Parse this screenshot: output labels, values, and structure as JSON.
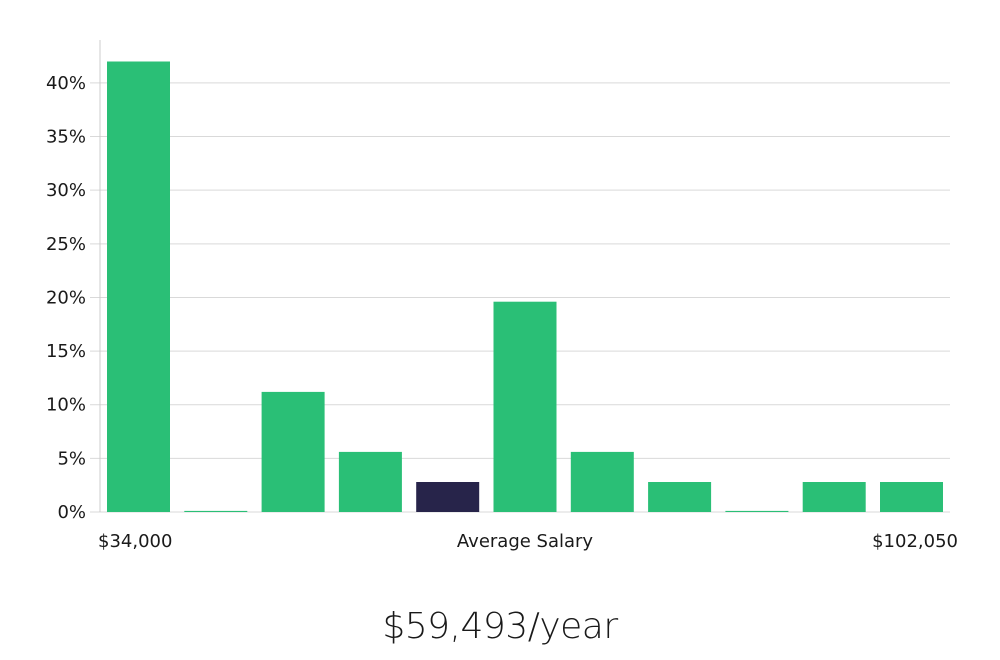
{
  "chart_data": {
    "type": "bar",
    "categories_count": 11,
    "values": [
      42,
      0.1,
      11.2,
      5.6,
      2.8,
      19.6,
      5.6,
      2.8,
      0.1,
      2.8,
      2.8
    ],
    "highlight_index": 4,
    "ylim": [
      0,
      44
    ],
    "y_ticks": [
      0,
      5,
      10,
      15,
      20,
      25,
      30,
      35,
      40
    ],
    "y_tick_suffix": "%",
    "x_min_label": "$34,000",
    "x_mid_label": "Average Salary",
    "x_max_label": "$102,050",
    "grid": true,
    "colors": {
      "bar": "#2abf76",
      "highlight": "#27244a",
      "grid": "#d9d9d9",
      "axis": "#cccccc"
    }
  },
  "summary_text": "$59,493/year"
}
